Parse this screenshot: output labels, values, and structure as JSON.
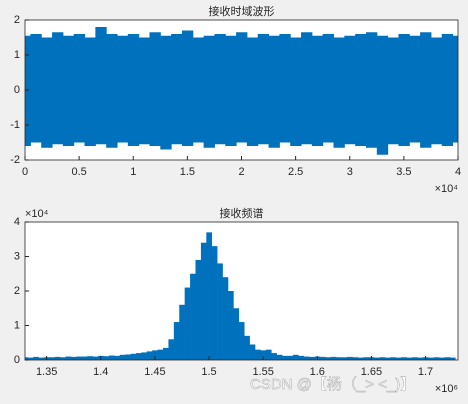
{
  "chart_data": [
    {
      "type": "band",
      "title": "接收时域波形",
      "x": [
        0,
        0.1,
        0.2,
        0.3,
        0.4,
        0.5,
        0.6,
        0.7,
        0.8,
        0.9,
        1,
        1.1,
        1.2,
        1.3,
        1.4,
        1.5,
        1.6,
        1.7,
        1.8,
        1.9,
        2,
        2.1,
        2.2,
        2.3,
        2.4,
        2.5,
        2.6,
        2.7,
        2.8,
        2.9,
        3,
        3.1,
        3.2,
        3.3,
        3.4,
        3.5,
        3.6,
        3.7,
        3.8,
        3.9,
        4
      ],
      "series": [
        {
          "color": "#0072bd",
          "values": [
            1.55,
            1.6,
            1.5,
            1.65,
            1.55,
            1.6,
            1.5,
            1.8,
            1.6,
            1.55,
            1.6,
            1.5,
            1.65,
            1.55,
            1.6,
            1.7,
            1.5,
            1.55,
            1.6,
            1.55,
            1.65,
            1.5,
            1.6,
            1.55,
            1.6,
            1.5,
            1.65,
            1.55,
            1.6,
            1.5,
            1.55,
            1.6,
            1.65,
            1.55,
            1.5,
            1.6,
            1.55,
            1.65,
            1.5,
            1.6,
            1.55
          ]
        },
        {
          "color": "#0072bd",
          "values": [
            -1.6,
            -1.5,
            -1.65,
            -1.55,
            -1.6,
            -1.5,
            -1.6,
            -1.55,
            -1.65,
            -1.5,
            -1.6,
            -1.55,
            -1.6,
            -1.7,
            -1.55,
            -1.6,
            -1.5,
            -1.65,
            -1.55,
            -1.6,
            -1.5,
            -1.6,
            -1.55,
            -1.65,
            -1.5,
            -1.6,
            -1.55,
            -1.6,
            -1.5,
            -1.65,
            -1.55,
            -1.6,
            -1.65,
            -1.85,
            -1.55,
            -1.6,
            -1.5,
            -1.65,
            -1.55,
            -1.6,
            -1.5
          ]
        }
      ],
      "xlim": [
        0,
        4
      ],
      "xticks": [
        0,
        0.5,
        1,
        1.5,
        2,
        2.5,
        3,
        3.5,
        4
      ],
      "x_exponent": "×10⁴",
      "ylim": [
        -2,
        2
      ],
      "yticks": [
        -2,
        -1,
        0,
        1,
        2
      ]
    },
    {
      "type": "bar",
      "title": "接收频谱",
      "color": "#0072bd",
      "x": [
        1.33,
        1.335,
        1.34,
        1.345,
        1.35,
        1.355,
        1.36,
        1.365,
        1.37,
        1.375,
        1.38,
        1.385,
        1.39,
        1.395,
        1.4,
        1.405,
        1.41,
        1.415,
        1.42,
        1.425,
        1.43,
        1.435,
        1.44,
        1.445,
        1.45,
        1.455,
        1.46,
        1.465,
        1.47,
        1.475,
        1.48,
        1.485,
        1.49,
        1.495,
        1.5,
        1.505,
        1.51,
        1.515,
        1.52,
        1.525,
        1.53,
        1.535,
        1.54,
        1.545,
        1.55,
        1.555,
        1.56,
        1.565,
        1.57,
        1.575,
        1.58,
        1.585,
        1.59,
        1.595,
        1.6,
        1.605,
        1.61,
        1.615,
        1.62,
        1.625,
        1.63,
        1.635,
        1.64,
        1.645,
        1.65,
        1.655,
        1.66,
        1.665,
        1.67,
        1.675,
        1.68,
        1.685,
        1.69,
        1.695,
        1.7,
        1.705,
        1.71,
        1.715,
        1.72,
        1.725
      ],
      "values": [
        0.08,
        0.07,
        0.09,
        0.07,
        0.08,
        0.08,
        0.09,
        0.08,
        0.1,
        0.09,
        0.1,
        0.1,
        0.11,
        0.1,
        0.12,
        0.11,
        0.13,
        0.12,
        0.15,
        0.16,
        0.18,
        0.2,
        0.22,
        0.25,
        0.28,
        0.3,
        0.35,
        0.6,
        1.1,
        1.6,
        2.1,
        2.5,
        2.9,
        3.4,
        3.7,
        3.3,
        2.8,
        2.4,
        2,
        1.5,
        1.1,
        0.7,
        0.45,
        0.3,
        0.28,
        0.3,
        0.2,
        0.15,
        0.12,
        0.12,
        0.15,
        0.12,
        0.1,
        0.09,
        0.1,
        0.09,
        0.08,
        0.09,
        0.08,
        0.08,
        0.09,
        0.08,
        0.07,
        0.08,
        0.08,
        0.07,
        0.08,
        0.07,
        0.08,
        0.07,
        0.08,
        0.07,
        0.08,
        0.07,
        0.08,
        0.07,
        0.08,
        0.07,
        0.08,
        0.07
      ],
      "xlim": [
        1.33,
        1.73
      ],
      "xticks": [
        1.35,
        1.4,
        1.45,
        1.5,
        1.55,
        1.6,
        1.65,
        1.7
      ],
      "x_exponent": "×10⁶",
      "ylim": [
        0,
        4
      ],
      "yticks": [
        0,
        1,
        2,
        3,
        4
      ],
      "y_exponent": "×10⁴"
    }
  ],
  "watermark": "CSDN @【杨（_> <_)】"
}
